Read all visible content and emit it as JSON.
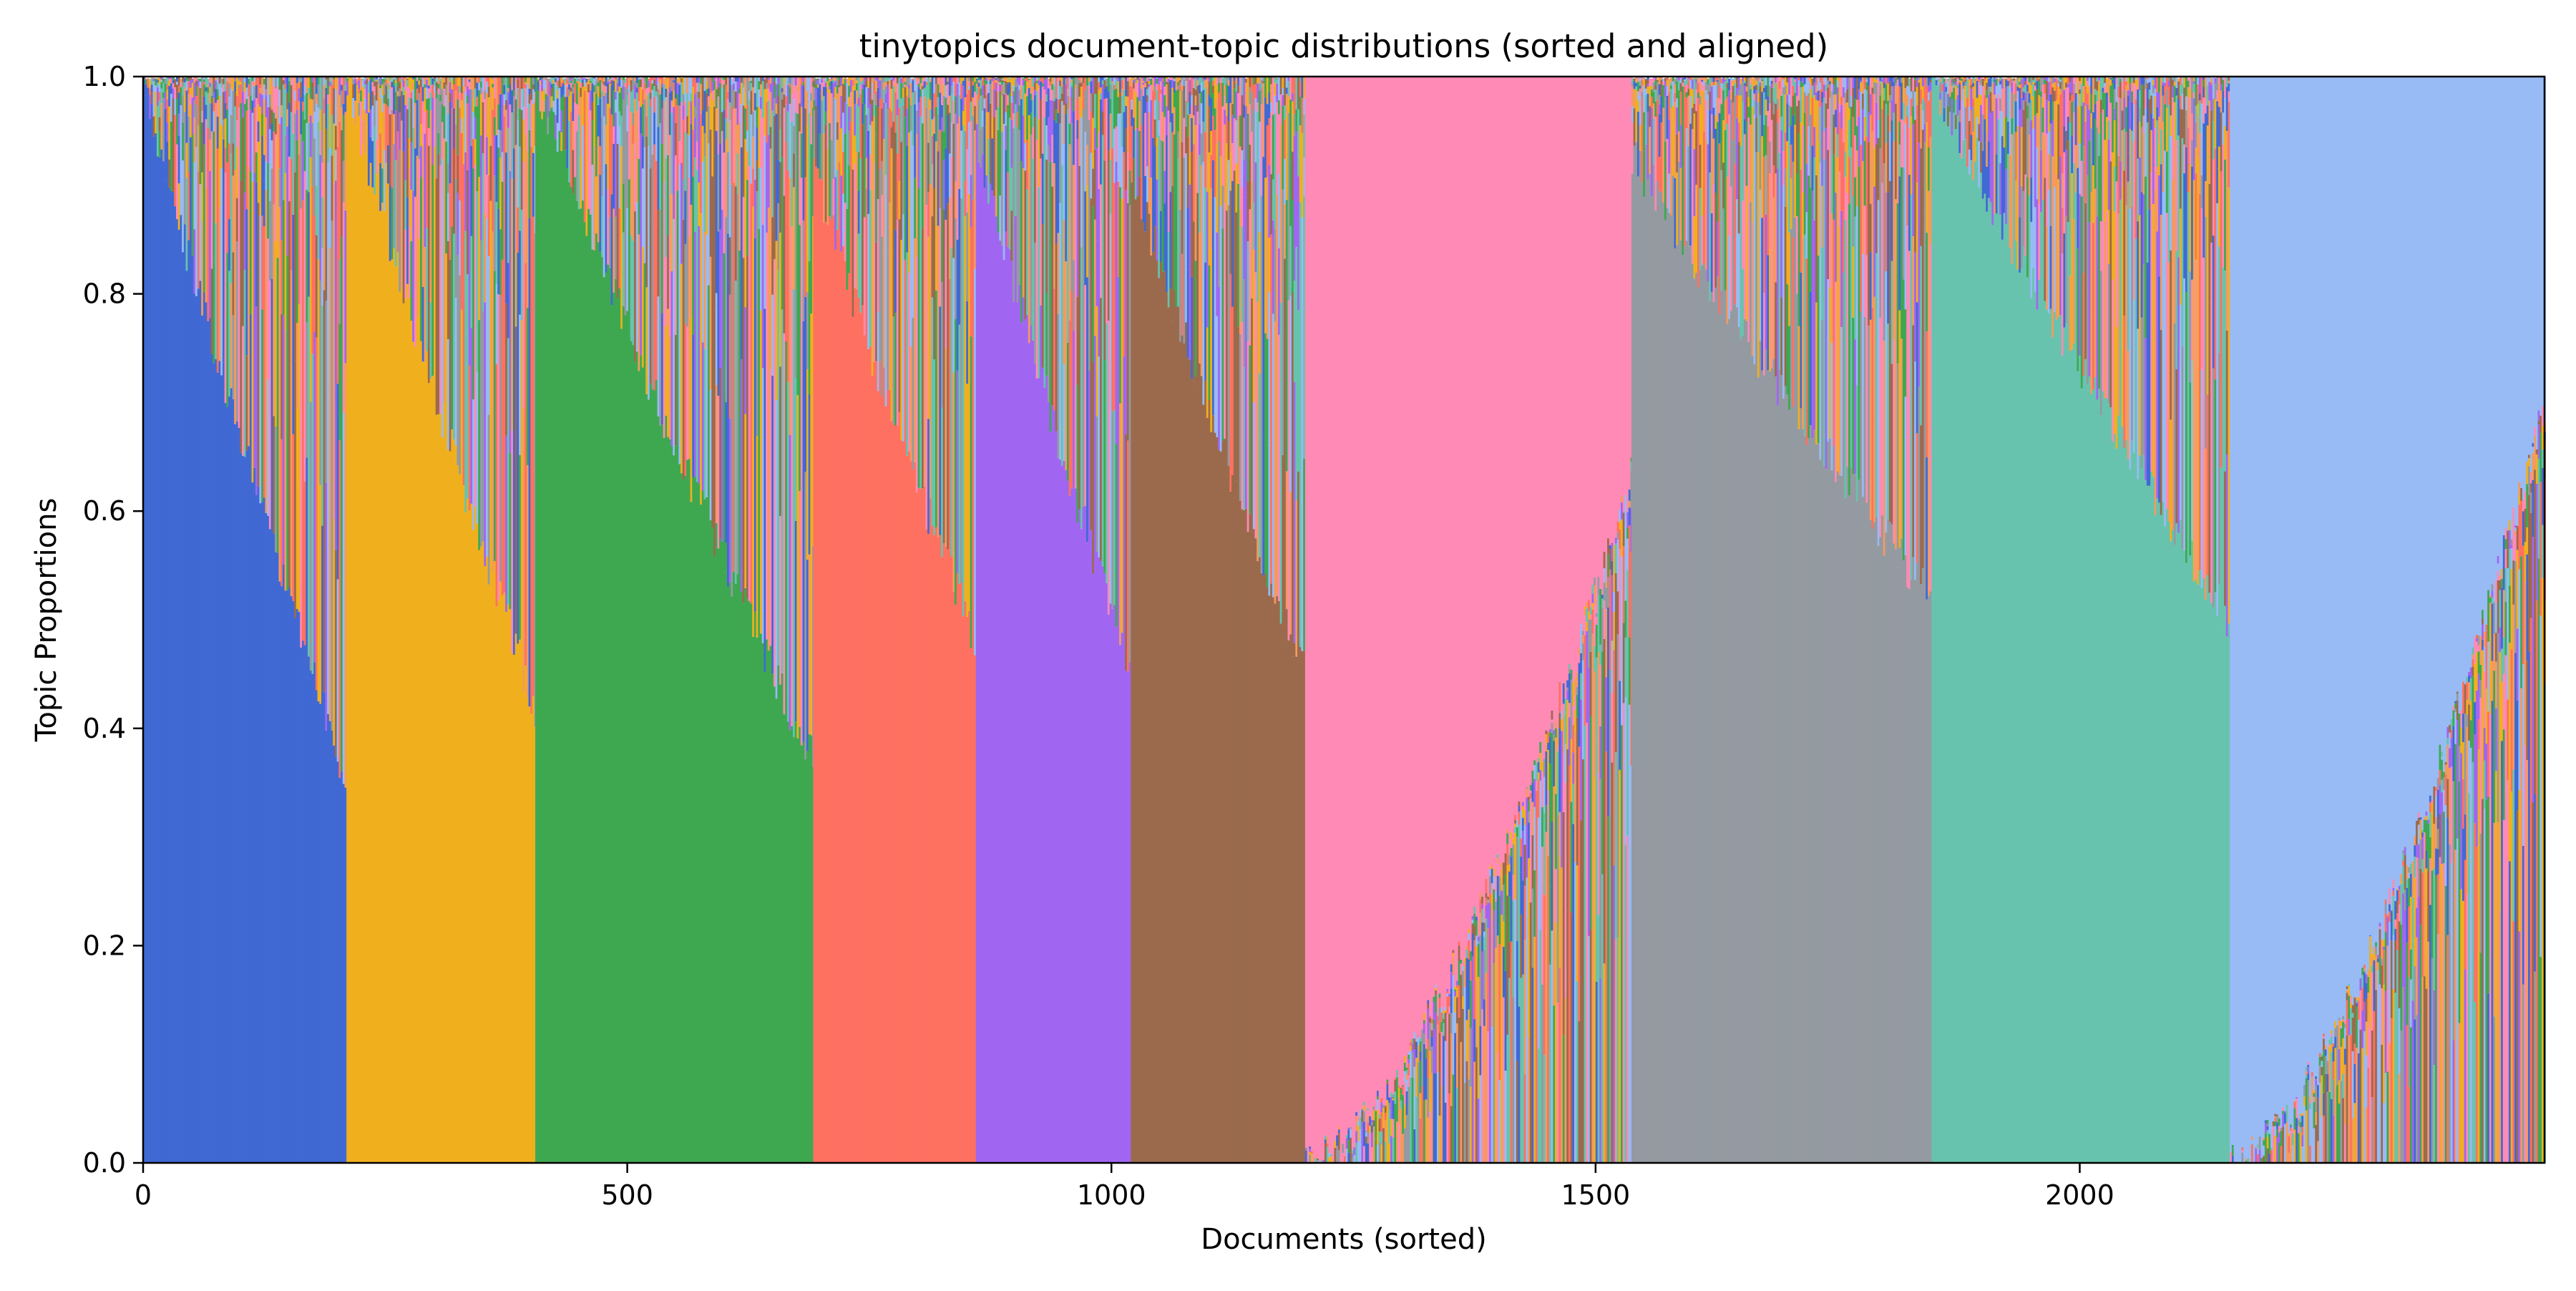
{
  "chart_data": {
    "type": "area",
    "title": "tinytopics document-topic distributions (sorted and aligned)",
    "xlabel": "Documents (sorted)",
    "ylabel": "Topic Proportions",
    "xlim": [
      0,
      2480
    ],
    "ylim": [
      0.0,
      1.0
    ],
    "x_ticks": [
      0,
      500,
      1000,
      1500,
      2000
    ],
    "y_ticks": [
      0.0,
      0.2,
      0.4,
      0.6,
      0.8,
      1.0
    ],
    "y_tick_labels": [
      "0.0",
      "0.2",
      "0.4",
      "0.6",
      "0.8",
      "1.0"
    ],
    "grid": false,
    "legend": "none",
    "stacked": true,
    "topic_colors": [
      "#4169d4",
      "#f0b01e",
      "#3ea851",
      "#fe7161",
      "#a066f2",
      "#9b6a4d",
      "#ff8ab5",
      "#949aa1",
      "#68c3ae",
      "#98bbf5"
    ],
    "filler_colors": [
      "#f49a5e",
      "#ff8ab5",
      "#a066f2",
      "#9b6a4d",
      "#68c3ae",
      "#98bbf5",
      "#949aa1",
      "#3ea851",
      "#fe7161",
      "#f0b01e",
      "#4169d4"
    ],
    "groups": [
      {
        "topic": 0,
        "x_start": 0,
        "x_end": 210,
        "dominant_start": 1.0,
        "dominant_end": 0.35,
        "placement": "bottom"
      },
      {
        "topic": 1,
        "x_start": 210,
        "x_end": 405,
        "dominant_start": 1.0,
        "dominant_end": 0.42,
        "placement": "bottom"
      },
      {
        "topic": 2,
        "x_start": 405,
        "x_end": 692,
        "dominant_start": 1.0,
        "dominant_end": 0.37,
        "placement": "bottom"
      },
      {
        "topic": 3,
        "x_start": 692,
        "x_end": 860,
        "dominant_start": 0.92,
        "dominant_end": 0.48,
        "placement": "bottom"
      },
      {
        "topic": 4,
        "x_start": 860,
        "x_end": 1020,
        "dominant_start": 0.95,
        "dominant_end": 0.45,
        "placement": "bottom"
      },
      {
        "topic": 5,
        "x_start": 1020,
        "x_end": 1200,
        "dominant_start": 0.92,
        "dominant_end": 0.45,
        "placement": "bottom"
      },
      {
        "topic": 6,
        "x_start": 1200,
        "x_end": 1537,
        "dominant_start": 1.0,
        "dominant_end": 0.37,
        "placement": "top"
      },
      {
        "topic": 7,
        "x_start": 1537,
        "x_end": 1847,
        "dominant_start": 0.93,
        "dominant_end": 0.52,
        "placement": "bottom"
      },
      {
        "topic": 8,
        "x_start": 1847,
        "x_end": 2155,
        "dominant_start": 1.0,
        "dominant_end": 0.5,
        "placement": "bottom"
      },
      {
        "topic": 9,
        "x_start": 2155,
        "x_end": 2480,
        "dominant_start": 1.0,
        "dominant_end": 0.3,
        "placement": "top"
      }
    ]
  }
}
